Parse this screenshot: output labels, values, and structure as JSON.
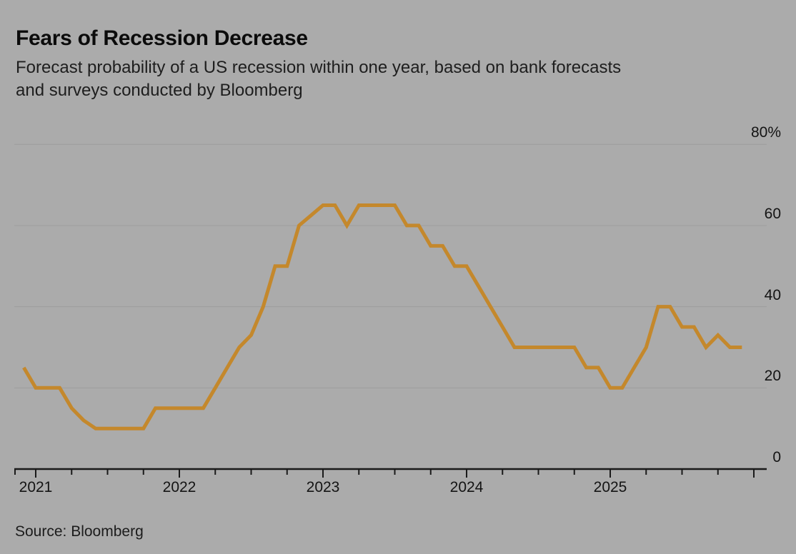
{
  "header": {
    "title": "Fears of Recession Decrease",
    "subtitle_lines": [
      "Forecast probability of a US recession within one year, based on bank forecasts",
      "and surveys conducted by Bloomberg"
    ]
  },
  "source": {
    "label": "Source: Bloomberg"
  },
  "colors": {
    "background": "#ABABAB",
    "line": "#C4882C",
    "gridline": "#9C9C9C",
    "axis": "#1A1A1A",
    "text": "#141414"
  },
  "chart_data": {
    "type": "line",
    "title": "Fears of Recession Decrease",
    "unit": "%",
    "ylim": [
      0,
      80
    ],
    "grid": true,
    "legend": "none",
    "y_axis": {
      "side": "right",
      "ticks": [
        {
          "value": 80,
          "label": "80%"
        },
        {
          "value": 60,
          "label": "60"
        },
        {
          "value": 40,
          "label": "40"
        },
        {
          "value": 20,
          "label": "20"
        },
        {
          "value": 0,
          "label": "0"
        }
      ]
    },
    "x_axis": {
      "year_labels": [
        "2021",
        "2022",
        "2023",
        "2024",
        "2025"
      ],
      "minor_tick_interval": "quarterly"
    },
    "series": [
      {
        "name": "US recession probability within one year",
        "points": [
          {
            "date": "2020-12",
            "value": 25
          },
          {
            "date": "2021-01",
            "value": 20
          },
          {
            "date": "2021-02",
            "value": 20
          },
          {
            "date": "2021-03",
            "value": 20
          },
          {
            "date": "2021-04",
            "value": 15
          },
          {
            "date": "2021-05",
            "value": 12
          },
          {
            "date": "2021-06",
            "value": 10
          },
          {
            "date": "2021-07",
            "value": 10
          },
          {
            "date": "2021-08",
            "value": 10
          },
          {
            "date": "2021-09",
            "value": 10
          },
          {
            "date": "2021-10",
            "value": 10
          },
          {
            "date": "2021-11",
            "value": 15
          },
          {
            "date": "2021-12",
            "value": 15
          },
          {
            "date": "2022-01",
            "value": 15
          },
          {
            "date": "2022-02",
            "value": 15
          },
          {
            "date": "2022-03",
            "value": 15
          },
          {
            "date": "2022-04",
            "value": 20
          },
          {
            "date": "2022-05",
            "value": 25
          },
          {
            "date": "2022-06",
            "value": 30
          },
          {
            "date": "2022-07",
            "value": 33
          },
          {
            "date": "2022-08",
            "value": 40
          },
          {
            "date": "2022-09",
            "value": 50
          },
          {
            "date": "2022-10",
            "value": 50
          },
          {
            "date": "2022-11",
            "value": 60
          },
          {
            "date": "2022-12",
            "value": 62.5
          },
          {
            "date": "2023-01",
            "value": 65
          },
          {
            "date": "2023-02",
            "value": 65
          },
          {
            "date": "2023-03",
            "value": 60
          },
          {
            "date": "2023-04",
            "value": 65
          },
          {
            "date": "2023-05",
            "value": 65
          },
          {
            "date": "2023-06",
            "value": 65
          },
          {
            "date": "2023-07",
            "value": 65
          },
          {
            "date": "2023-08",
            "value": 60
          },
          {
            "date": "2023-09",
            "value": 60
          },
          {
            "date": "2023-10",
            "value": 55
          },
          {
            "date": "2023-11",
            "value": 55
          },
          {
            "date": "2023-12",
            "value": 50
          },
          {
            "date": "2024-01",
            "value": 50
          },
          {
            "date": "2024-02",
            "value": 45
          },
          {
            "date": "2024-03",
            "value": 40
          },
          {
            "date": "2024-04",
            "value": 35
          },
          {
            "date": "2024-05",
            "value": 30
          },
          {
            "date": "2024-06",
            "value": 30
          },
          {
            "date": "2024-07",
            "value": 30
          },
          {
            "date": "2024-08",
            "value": 30
          },
          {
            "date": "2024-09",
            "value": 30
          },
          {
            "date": "2024-10",
            "value": 30
          },
          {
            "date": "2024-11",
            "value": 25
          },
          {
            "date": "2024-12",
            "value": 25
          },
          {
            "date": "2025-01",
            "value": 20
          },
          {
            "date": "2025-02",
            "value": 20
          },
          {
            "date": "2025-03",
            "value": 25
          },
          {
            "date": "2025-04",
            "value": 30
          },
          {
            "date": "2025-05",
            "value": 40
          },
          {
            "date": "2025-06",
            "value": 40
          },
          {
            "date": "2025-07",
            "value": 35
          },
          {
            "date": "2025-08",
            "value": 35
          },
          {
            "date": "2025-09",
            "value": 30
          },
          {
            "date": "2025-10",
            "value": 33
          },
          {
            "date": "2025-11",
            "value": 30
          },
          {
            "date": "2025-12",
            "value": 30
          }
        ]
      }
    ]
  }
}
